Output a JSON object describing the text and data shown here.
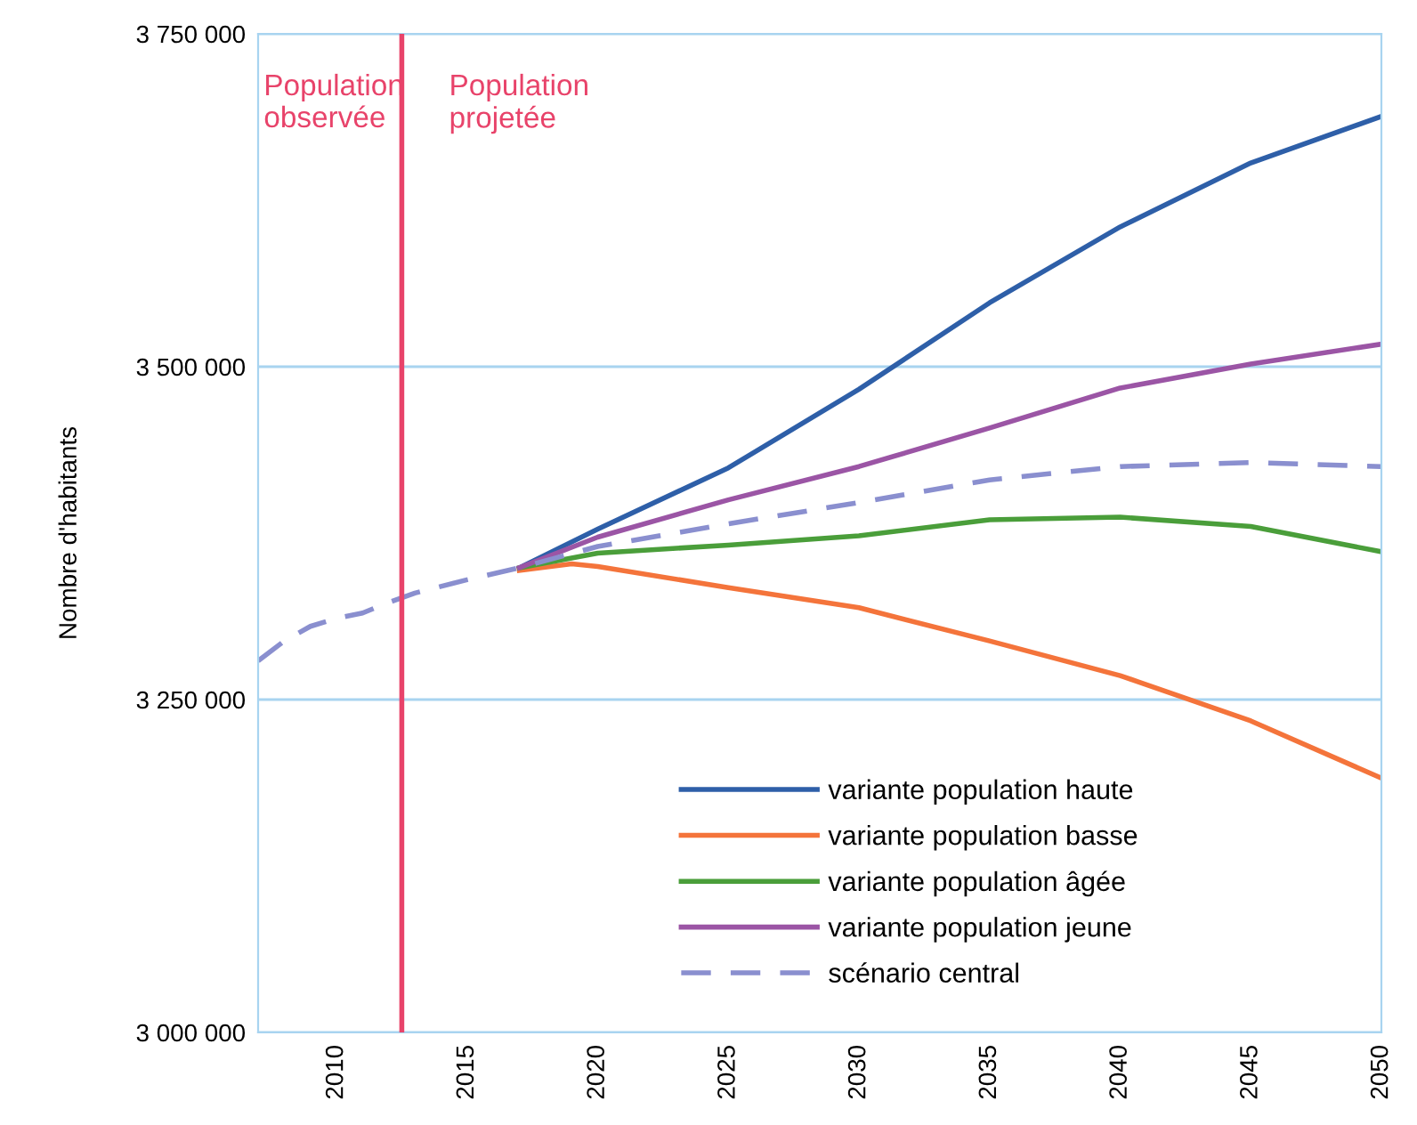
{
  "chart_data": {
    "type": "line",
    "ylabel": "Nombre d'habitants",
    "xlim": [
      2007,
      2050
    ],
    "xticks": [
      2010,
      2015,
      2020,
      2025,
      2030,
      2035,
      2040,
      2045,
      2050
    ],
    "ylim": [
      3000000,
      3750000
    ],
    "yticks": [
      {
        "value": 3000000,
        "label": "3 000 000"
      },
      {
        "value": 3250000,
        "label": "3 250 000"
      },
      {
        "value": 3500000,
        "label": "3 500 000"
      },
      {
        "value": 3750000,
        "label": "3 750 000"
      }
    ],
    "grid": "y",
    "legend": "bottom",
    "line_style": "solid",
    "ref_lines": [
      {
        "axis": "x",
        "value": 2012.5,
        "color": "#e8436a"
      }
    ],
    "annotations": [
      "Population\nobservée",
      "Population\nprojetée"
    ],
    "series": [
      {
        "name": "variante population haute",
        "color": "#2e5fa8",
        "x": [
          2017,
          2020,
          2025,
          2030,
          2035,
          2040,
          2045,
          2050
        ],
        "values": [
          3349000,
          3378000,
          3424000,
          3483000,
          3548000,
          3605000,
          3653000,
          3688000
        ]
      },
      {
        "name": "variante population basse",
        "color": "#f4743b",
        "x": [
          2017,
          2019,
          2020,
          2025,
          2030,
          2035,
          2040,
          2045,
          2050
        ],
        "values": [
          3347000,
          3352000,
          3350000,
          3334000,
          3319000,
          3294000,
          3268000,
          3234000,
          3191000
        ]
      },
      {
        "name": "variante population âgée",
        "color": "#4a9e3a",
        "x": [
          2017,
          2020,
          2025,
          2030,
          2035,
          2040,
          2045,
          2050
        ],
        "values": [
          3349000,
          3360000,
          3366000,
          3373000,
          3385000,
          3387000,
          3380000,
          3361000
        ]
      },
      {
        "name": "variante population jeune",
        "color": "#9b55a5",
        "x": [
          2017,
          2020,
          2025,
          2030,
          2035,
          2040,
          2045,
          2050
        ],
        "values": [
          3349000,
          3372000,
          3400000,
          3425000,
          3454000,
          3484000,
          3502000,
          3517000
        ]
      },
      {
        "name": "scénario central",
        "color": "#8a8fcf",
        "line_style": "dashed",
        "x": [
          2007,
          2008,
          2009,
          2010,
          2011,
          2012,
          2013,
          2015,
          2017,
          2020,
          2025,
          2030,
          2035,
          2040,
          2045,
          2050
        ],
        "values": [
          3279000,
          3294000,
          3305000,
          3311000,
          3315000,
          3323000,
          3330000,
          3340000,
          3349000,
          3365000,
          3382000,
          3398000,
          3415000,
          3425000,
          3428000,
          3425000
        ]
      }
    ]
  }
}
